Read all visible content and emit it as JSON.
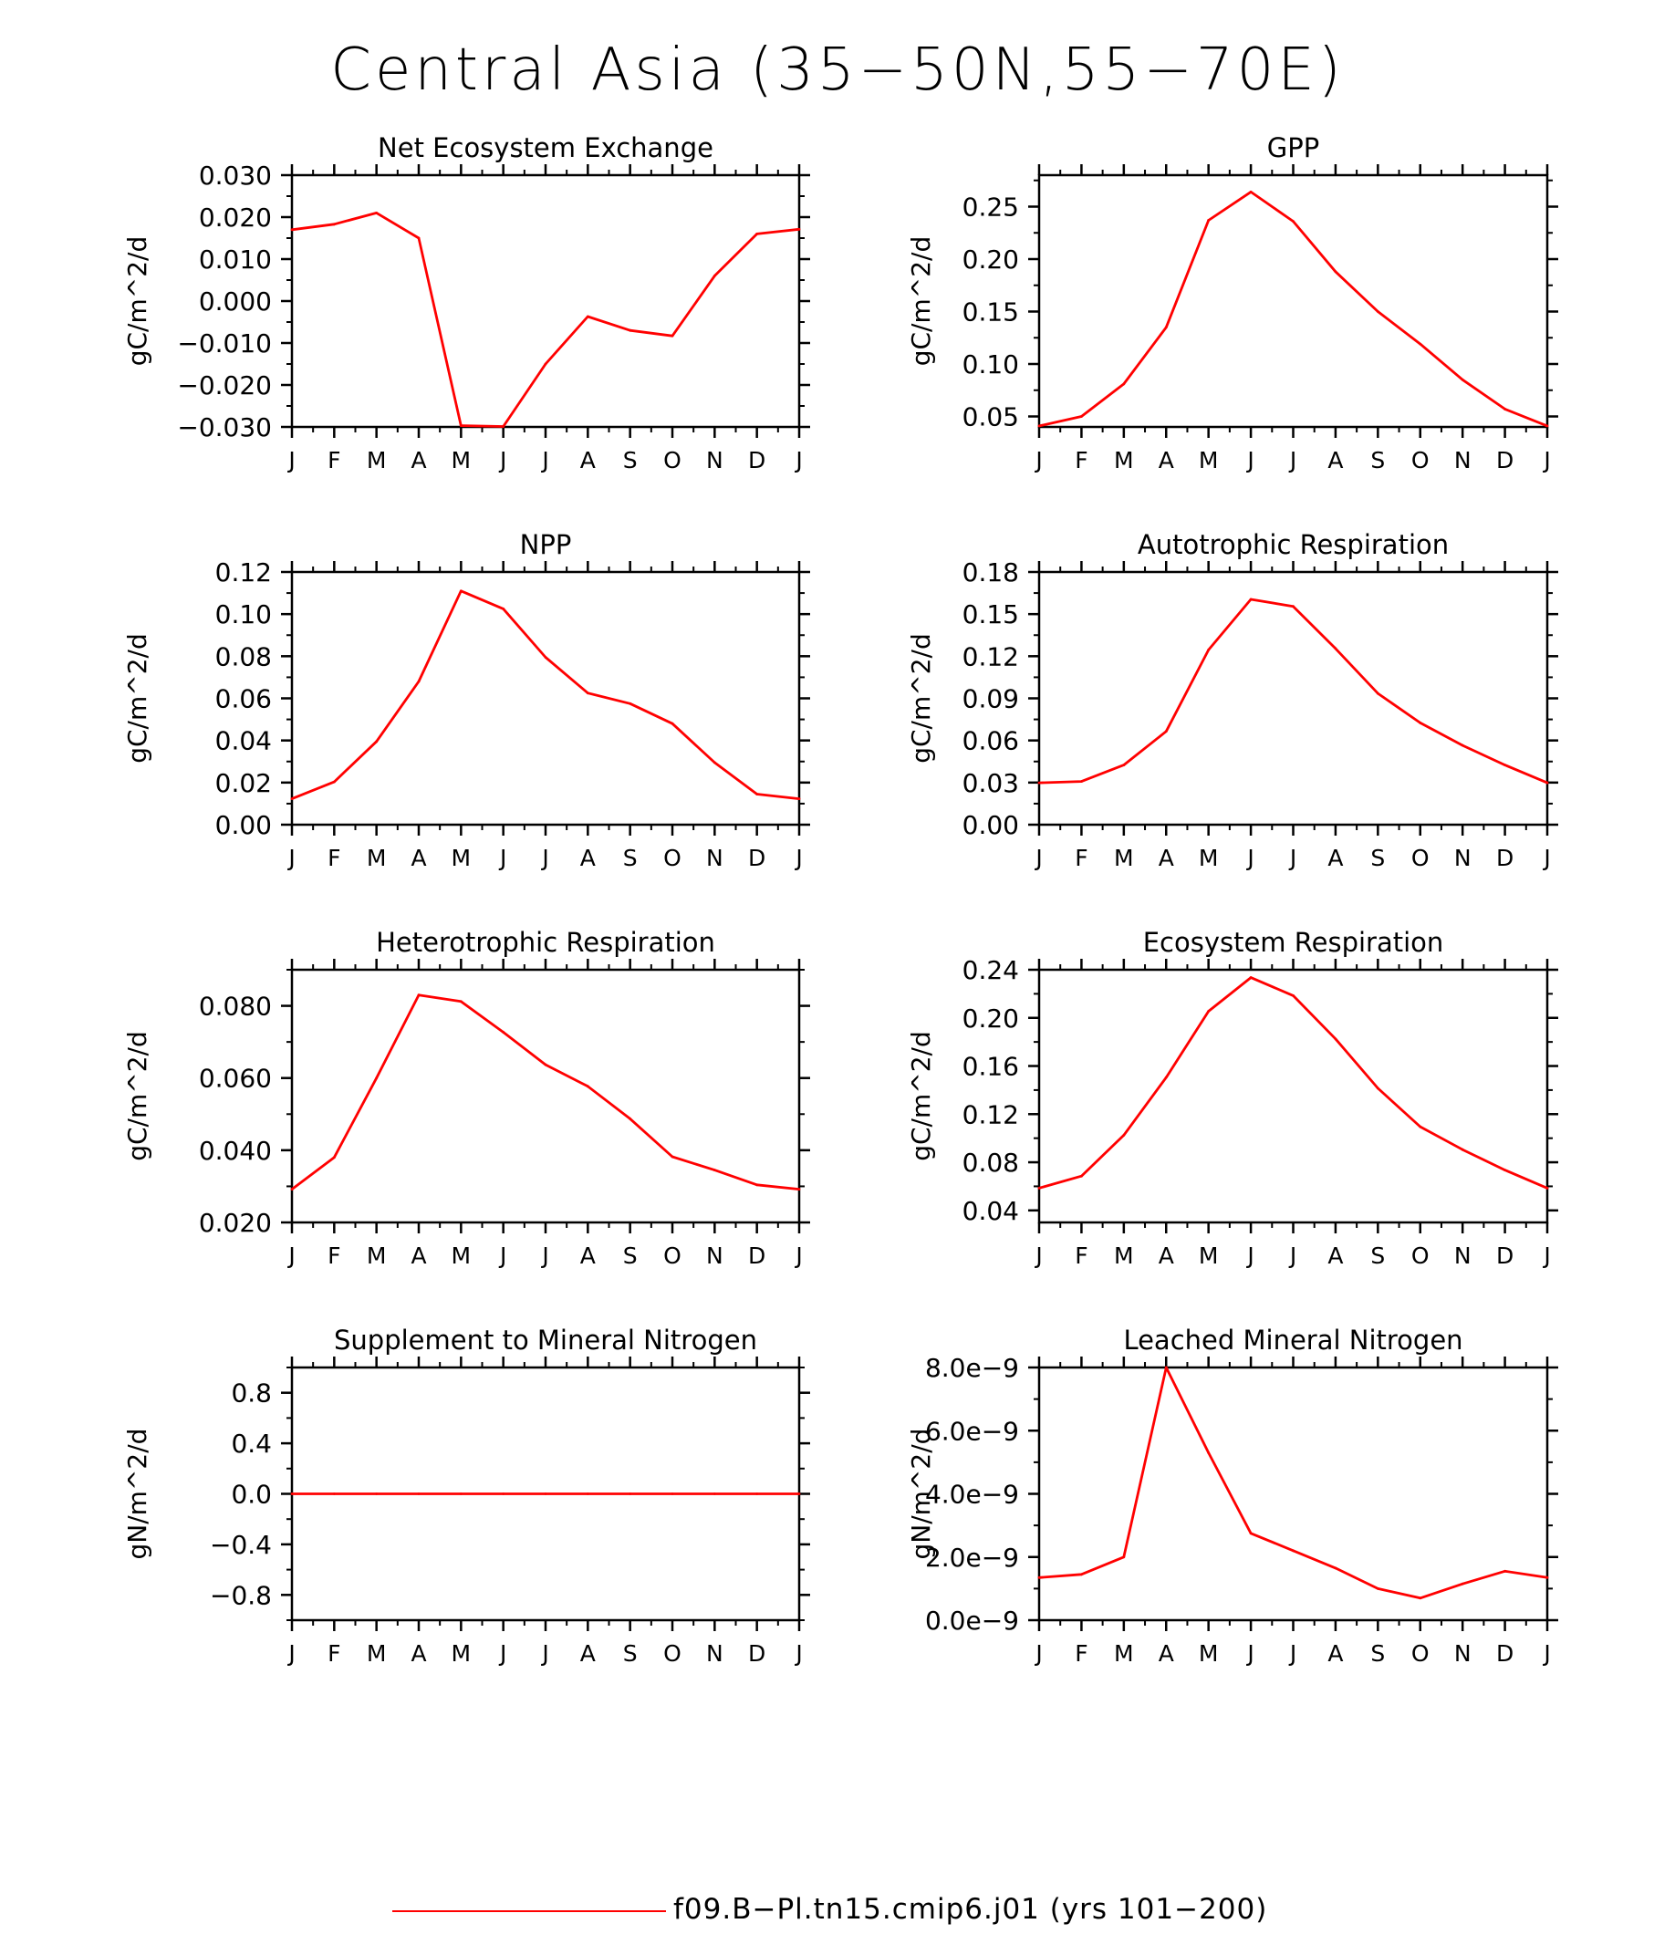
{
  "title": "Central Asia (35−50N,55−70E)",
  "legend": {
    "label": "f09.B−Pl.tn15.cmip6.j01 (yrs 101−200)",
    "color": "#ff0000"
  },
  "chart_data": [
    {
      "type": "line",
      "title": "Net Ecosystem Exchange",
      "ylabel": "gC/m^2/d",
      "categories": [
        "J",
        "F",
        "M",
        "A",
        "M",
        "J",
        "J",
        "A",
        "S",
        "O",
        "N",
        "D",
        "J"
      ],
      "values": [
        0.017,
        0.0183,
        0.021,
        0.015,
        -0.0297,
        -0.0299,
        -0.015,
        -0.0037,
        -0.007,
        -0.0083,
        0.006,
        0.016,
        0.0171
      ],
      "ylim": [
        -0.03,
        0.03
      ],
      "yticks": [
        -0.03,
        -0.02,
        -0.01,
        0,
        0.01,
        0.02,
        0.03
      ],
      "yticklabels": [
        "−0.030",
        "−0.020",
        "−0.010",
        "0.000",
        "0.010",
        "0.020",
        "0.030"
      ],
      "color": "#ff0000"
    },
    {
      "type": "line",
      "title": "GPP",
      "ylabel": "gC/m^2/d",
      "categories": [
        "J",
        "F",
        "M",
        "A",
        "M",
        "J",
        "J",
        "A",
        "S",
        "O",
        "N",
        "D",
        "J"
      ],
      "values": [
        0.041,
        0.05,
        0.081,
        0.135,
        0.237,
        0.264,
        0.236,
        0.188,
        0.15,
        0.119,
        0.085,
        0.057,
        0.041
      ],
      "ylim": [
        0.04,
        0.28
      ],
      "yticks": [
        0.05,
        0.1,
        0.15,
        0.2,
        0.25
      ],
      "yticklabels": [
        "0.05",
        "0.10",
        "0.15",
        "0.20",
        "0.25"
      ],
      "color": "#ff0000"
    },
    {
      "type": "line",
      "title": "NPP",
      "ylabel": "gC/m^2/d",
      "categories": [
        "J",
        "F",
        "M",
        "A",
        "M",
        "J",
        "J",
        "A",
        "S",
        "O",
        "N",
        "D",
        "J"
      ],
      "values": [
        0.0123,
        0.0203,
        0.0395,
        0.068,
        0.111,
        0.1025,
        0.0795,
        0.0625,
        0.0575,
        0.048,
        0.0295,
        0.0145,
        0.0123
      ],
      "ylim": [
        0,
        0.12
      ],
      "yticks": [
        0,
        0.02,
        0.04,
        0.06,
        0.08,
        0.1,
        0.12
      ],
      "yticklabels": [
        "0.00",
        "0.02",
        "0.04",
        "0.06",
        "0.08",
        "0.10",
        "0.12"
      ],
      "color": "#ff0000"
    },
    {
      "type": "line",
      "title": "Autotrophic Respiration",
      "ylabel": "gC/m^2/d",
      "categories": [
        "J",
        "F",
        "M",
        "A",
        "M",
        "J",
        "J",
        "A",
        "S",
        "O",
        "N",
        "D",
        "J"
      ],
      "values": [
        0.0298,
        0.0308,
        0.0425,
        0.0665,
        0.1245,
        0.1605,
        0.1555,
        0.1255,
        0.0935,
        0.0725,
        0.0565,
        0.0425,
        0.0298
      ],
      "ylim": [
        0,
        0.18
      ],
      "yticks": [
        0,
        0.03,
        0.06,
        0.09,
        0.12,
        0.15,
        0.18
      ],
      "yticklabels": [
        "0.00",
        "0.03",
        "0.06",
        "0.09",
        "0.12",
        "0.15",
        "0.18"
      ],
      "color": "#ff0000"
    },
    {
      "type": "line",
      "title": "Heterotrophic Respiration",
      "ylabel": "gC/m^2/d",
      "categories": [
        "J",
        "F",
        "M",
        "A",
        "M",
        "J",
        "J",
        "A",
        "S",
        "O",
        "N",
        "D",
        "J"
      ],
      "values": [
        0.0292,
        0.038,
        0.06,
        0.083,
        0.0812,
        0.0727,
        0.0637,
        0.0577,
        0.0487,
        0.0382,
        0.0345,
        0.0304,
        0.0292
      ],
      "ylim": [
        0.02,
        0.09
      ],
      "yticks": [
        0.02,
        0.04,
        0.06,
        0.08
      ],
      "yticklabels": [
        "0.020",
        "0.040",
        "0.060",
        "0.080"
      ],
      "color": "#ff0000"
    },
    {
      "type": "line",
      "title": "Ecosystem Respiration",
      "ylabel": "gC/m^2/d",
      "categories": [
        "J",
        "F",
        "M",
        "A",
        "M",
        "J",
        "J",
        "A",
        "S",
        "O",
        "N",
        "D",
        "J"
      ],
      "values": [
        0.0585,
        0.0685,
        0.1025,
        0.1505,
        0.2055,
        0.2335,
        0.2185,
        0.1825,
        0.1415,
        0.1095,
        0.0905,
        0.0735,
        0.0585
      ],
      "ylim": [
        0.03,
        0.24
      ],
      "yticks": [
        0.04,
        0.08,
        0.12,
        0.16,
        0.2,
        0.24
      ],
      "yticklabels": [
        "0.04",
        "0.08",
        "0.12",
        "0.16",
        "0.20",
        "0.24"
      ],
      "color": "#ff0000"
    },
    {
      "type": "line",
      "title": "Supplement to Mineral Nitrogen",
      "ylabel": "gN/m^2/d",
      "categories": [
        "J",
        "F",
        "M",
        "A",
        "M",
        "J",
        "J",
        "A",
        "S",
        "O",
        "N",
        "D",
        "J"
      ],
      "values": [
        0,
        0,
        0,
        0,
        0,
        0,
        0,
        0,
        0,
        0,
        0,
        0,
        0
      ],
      "ylim": [
        -1,
        1
      ],
      "yticks": [
        -0.8,
        -0.4,
        0,
        0.4,
        0.8
      ],
      "yticklabels": [
        "−0.8",
        "−0.4",
        "0.0",
        "0.4",
        "0.8"
      ],
      "color": "#ff0000"
    },
    {
      "type": "line",
      "title": "Leached Mineral Nitrogen",
      "ylabel": "gN/m^2/d",
      "categories": [
        "J",
        "F",
        "M",
        "A",
        "M",
        "J",
        "J",
        "A",
        "S",
        "O",
        "N",
        "D",
        "J"
      ],
      "values": [
        1.35e-09,
        1.45e-09,
        2e-09,
        8e-09,
        5.3e-09,
        2.75e-09,
        2.2e-09,
        1.65e-09,
        1e-09,
        7e-10,
        1.15e-09,
        1.55e-09,
        1.35e-09
      ],
      "ylim": [
        0,
        8e-09
      ],
      "yticks": [
        0,
        2e-09,
        4e-09,
        6e-09,
        8e-09
      ],
      "yticklabels": [
        "0.0e−9",
        "2.0e−9",
        "4.0e−9",
        "6.0e−9",
        "8.0e−9"
      ],
      "color": "#ff0000"
    }
  ]
}
